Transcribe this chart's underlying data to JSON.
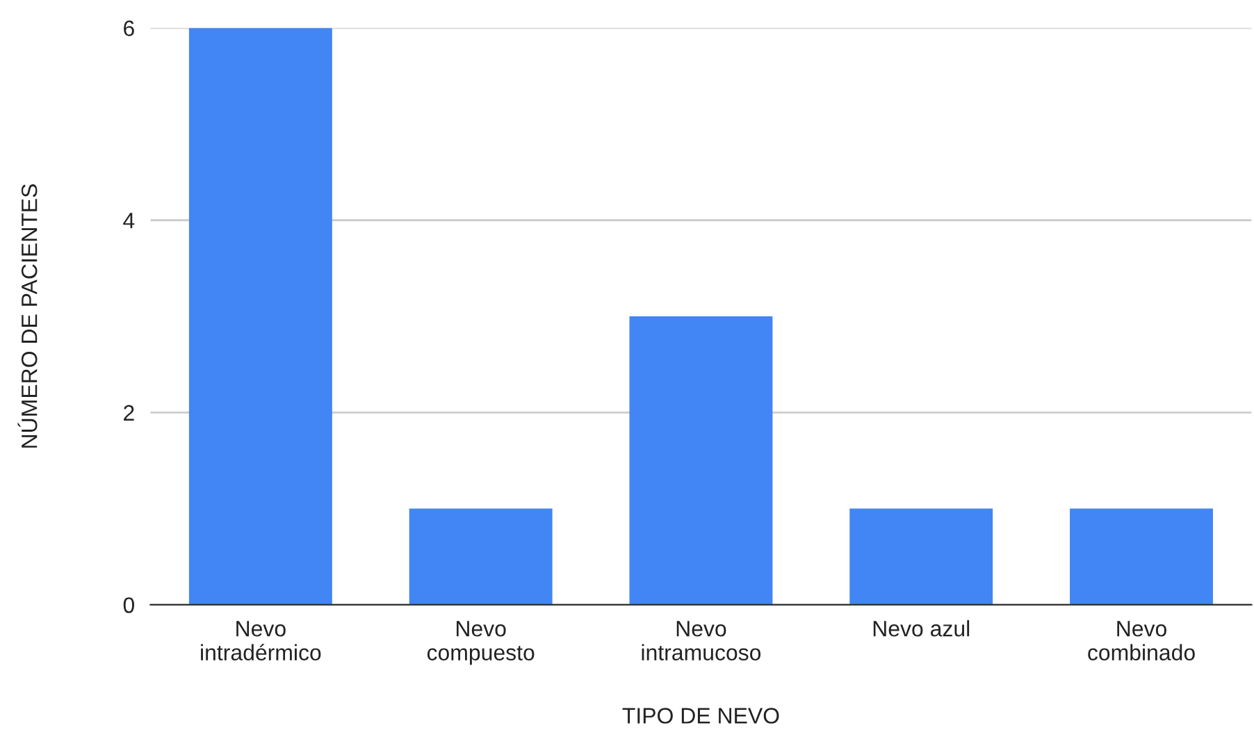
{
  "chart_data": {
    "type": "bar",
    "xlabel": "TIPO DE NEVO",
    "ylabel": "NÚMERO DE PACIENTES",
    "categories": [
      "Nevo\nintradérmico",
      "Nevo\ncompuesto",
      "Nevo\nintramucoso",
      "Nevo azul",
      "Nevo\ncombinado"
    ],
    "values": [
      6,
      1,
      3,
      1,
      1
    ],
    "color": "#4285f4",
    "ylim": [
      0,
      6
    ],
    "yticks": [
      0,
      2,
      4,
      6
    ],
    "grid": "y",
    "legend": false
  }
}
